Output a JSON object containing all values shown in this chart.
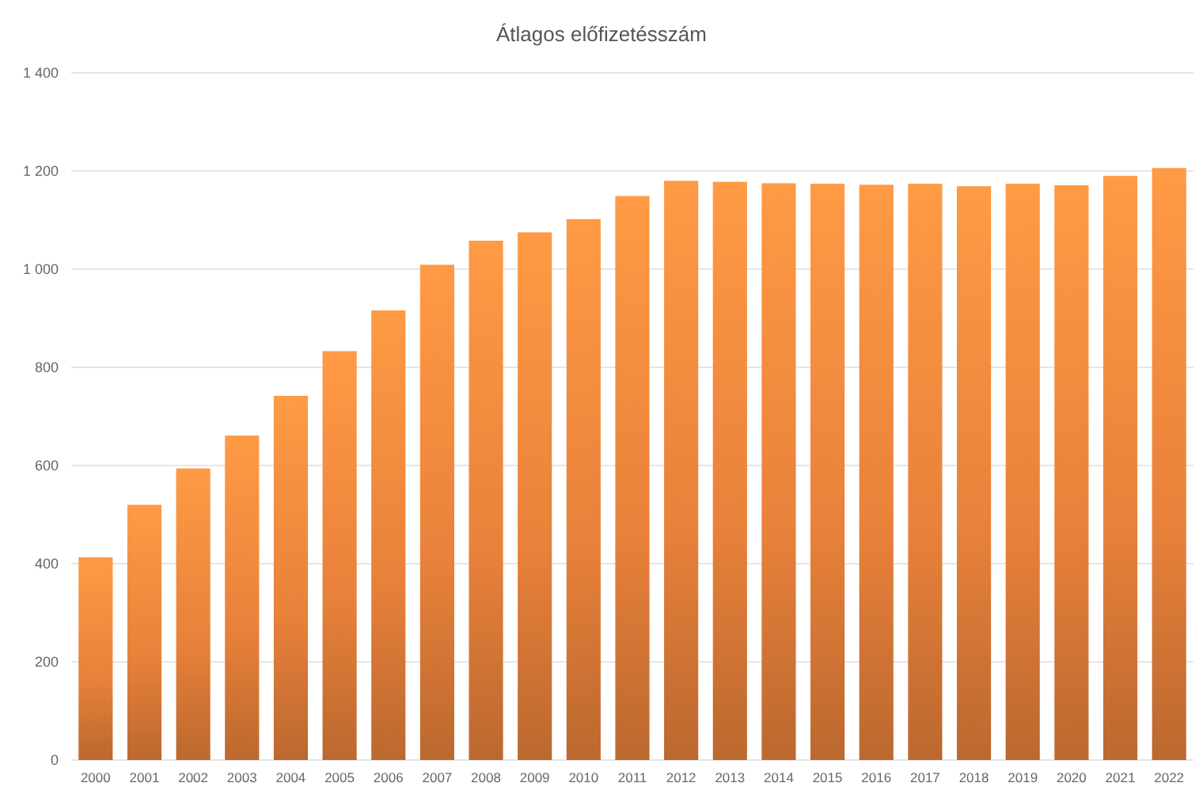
{
  "chart_data": {
    "type": "bar",
    "title": "Átlagos előfizetésszám",
    "categories": [
      "2000",
      "2001",
      "2002",
      "2003",
      "2004",
      "2005",
      "2006",
      "2007",
      "2008",
      "2009",
      "2010",
      "2011",
      "2012",
      "2013",
      "2014",
      "2015",
      "2016",
      "2017",
      "2018",
      "2019",
      "2020",
      "2021",
      "2022"
    ],
    "values": [
      413,
      520,
      594,
      661,
      742,
      833,
      916,
      1009,
      1058,
      1075,
      1102,
      1149,
      1180,
      1178,
      1175,
      1174,
      1172,
      1174,
      1169,
      1174,
      1171,
      1190,
      1206
    ],
    "color": "#e8813a",
    "ylim": [
      0,
      1400
    ],
    "yticks": [
      0,
      200,
      400,
      600,
      800,
      {
        "value": 1000,
        "label": "1 000"
      },
      {
        "value": 1200,
        "label": "1 200"
      },
      {
        "value": 1400,
        "label": "1 400"
      }
    ],
    "grid": "y"
  }
}
